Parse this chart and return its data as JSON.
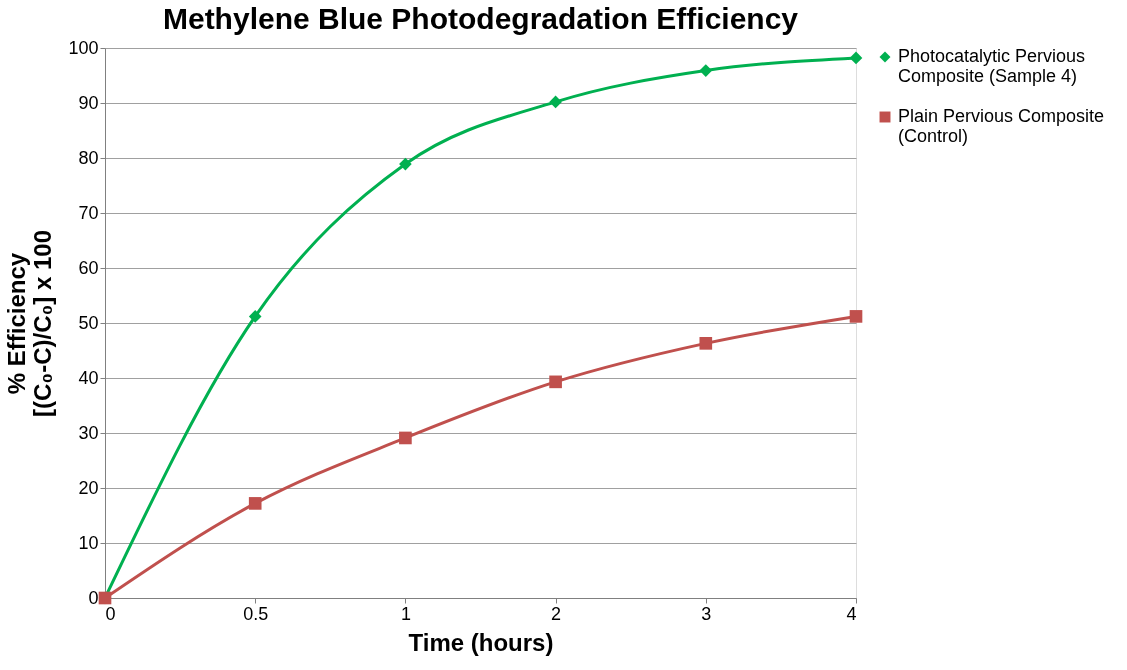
{
  "chart_data": {
    "type": "line",
    "title": "Methylene Blue Photodegradation Efficiency",
    "xlabel": "Time (hours)",
    "ylabel": "% Efficiency\n[(C₀-C)/C₀] x 100",
    "categories": [
      "0",
      "0.5",
      "1",
      "2",
      "3",
      "4"
    ],
    "series": [
      {
        "name": "Photocatalytic Pervious Composite (Sample 4)",
        "color": "#00b050",
        "marker": "diamond",
        "values": [
          0,
          51.2,
          78.9,
          90.2,
          95.9,
          98.2
        ]
      },
      {
        "name": "Plain Pervious Composite (Control)",
        "color": "#c0504d",
        "marker": "square",
        "values": [
          0,
          17.2,
          29.1,
          39.3,
          46.3,
          51.2
        ]
      }
    ],
    "ylim": [
      0,
      100
    ],
    "yticks": [
      0,
      10,
      20,
      30,
      40,
      50,
      60,
      70,
      80,
      90,
      100
    ],
    "grid": "y",
    "legend": "right",
    "line_style": "solid"
  }
}
